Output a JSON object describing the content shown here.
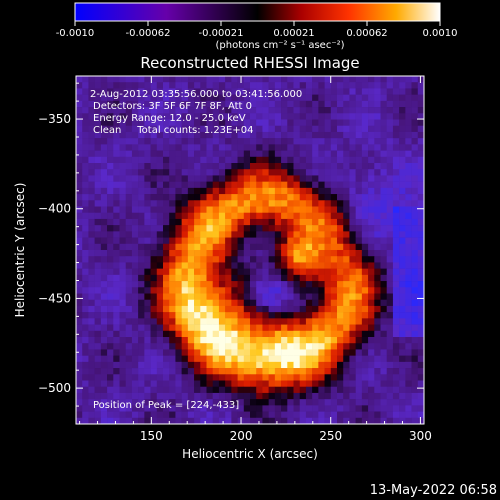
{
  "chart_data": {
    "type": "heatmap",
    "title": "Reconstructed RHESSI Image",
    "xlabel": "Heliocentric X (arcsec)",
    "ylabel": "Heliocentric Y (arcsec)",
    "xlim": [
      108,
      302
    ],
    "ylim": [
      -520,
      -326
    ],
    "x_ticks": [
      150,
      200,
      250,
      300
    ],
    "y_ticks": [
      -350,
      -400,
      -450,
      -500
    ],
    "colorbar": {
      "range": [
        -0.001,
        0.001
      ],
      "ticks": [
        "-0.0010",
        "-0.00062",
        "-0.00021",
        "0.00021",
        "0.00062",
        "0.0010"
      ],
      "unit_label": "(photons cm⁻² s⁻¹ asec⁻²)"
    },
    "annotations": [
      "2-Aug-2012 03:35:56.000 to 03:41:56.000",
      "Detectors: 3F 5F 6F 7F 8F, Att 0",
      "Energy Range: 12.0 - 25.0 keV",
      "Clean     Total counts: 1.23E+04"
    ],
    "peak_label": "Position of Peak = [224,-433]",
    "peak_xy": [
      224,
      -433
    ],
    "timestamp": "13-May-2022 06:58"
  }
}
